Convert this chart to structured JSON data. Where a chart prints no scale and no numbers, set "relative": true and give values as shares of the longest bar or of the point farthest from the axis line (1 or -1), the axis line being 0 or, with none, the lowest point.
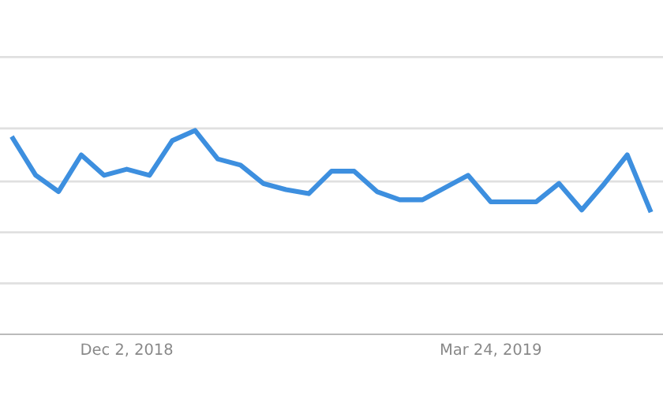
{
  "chart_data": {
    "type": "line",
    "relative": true,
    "grid": "y",
    "marker": "none",
    "line_style": "solid",
    "x": [
      "2018-10-28",
      "2018-11-04",
      "2018-11-11",
      "2018-11-18",
      "2018-11-25",
      "2018-12-02",
      "2018-12-09",
      "2018-12-16",
      "2018-12-23",
      "2018-12-30",
      "2019-01-06",
      "2019-01-13",
      "2019-01-20",
      "2019-01-27",
      "2019-02-03",
      "2019-02-10",
      "2019-02-17",
      "2019-02-24",
      "2019-03-03",
      "2019-03-10",
      "2019-03-17",
      "2019-03-24",
      "2019-03-31",
      "2019-04-07",
      "2019-04-14",
      "2019-04-21",
      "2019-04-28",
      "2019-05-05",
      "2019-05-12"
    ],
    "series": [
      {
        "color": "#3d8fdf",
        "values": [
          0.96,
          0.78,
          0.7,
          0.88,
          0.78,
          0.81,
          0.78,
          0.95,
          1.0,
          0.86,
          0.83,
          0.74,
          0.71,
          0.69,
          0.8,
          0.8,
          0.7,
          0.66,
          0.66,
          0.72,
          0.78,
          0.65,
          0.65,
          0.65,
          0.74,
          0.61,
          0.74,
          0.88,
          0.61
        ]
      }
    ],
    "xlim": [
      "2018-10-24",
      "2019-05-16"
    ],
    "xticks": [
      {
        "value": "2018-12-02",
        "label": "Dec 2, 2018"
      },
      {
        "value": "2019-03-24",
        "label": "Mar 24, 2019"
      }
    ]
  }
}
